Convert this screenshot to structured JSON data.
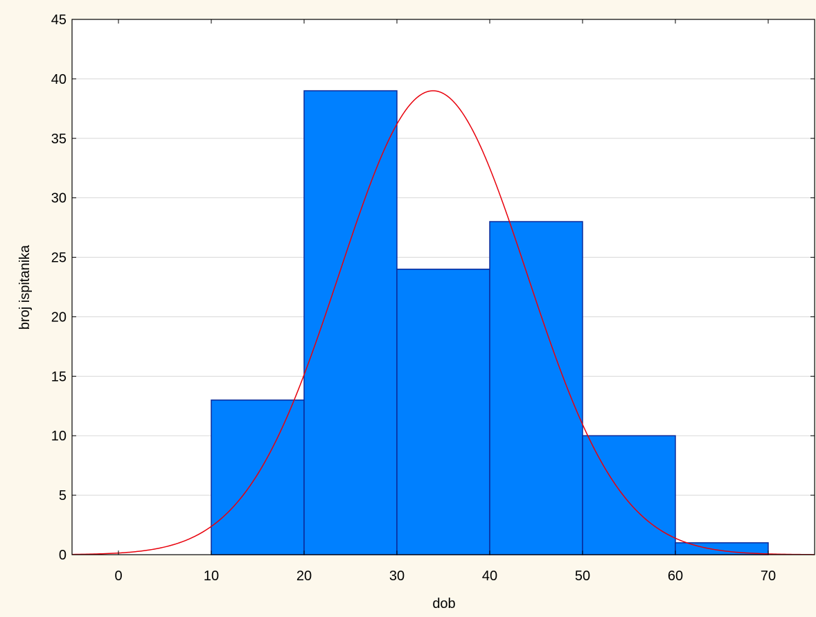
{
  "chart_data": {
    "type": "bar",
    "subtype": "histogram",
    "xlabel": "dob",
    "ylabel": "broj ispitanika",
    "xlim": [
      -5,
      75
    ],
    "ylim": [
      0,
      45
    ],
    "x_ticks": [
      0,
      10,
      20,
      30,
      40,
      50,
      60,
      70
    ],
    "y_ticks": [
      0,
      5,
      10,
      15,
      20,
      25,
      30,
      35,
      40,
      45
    ],
    "grid": "horizontal",
    "bins": [
      {
        "start": 10,
        "end": 20,
        "count": 13
      },
      {
        "start": 20,
        "end": 30,
        "count": 39
      },
      {
        "start": 30,
        "end": 40,
        "count": 24
      },
      {
        "start": 40,
        "end": 50,
        "count": 28
      },
      {
        "start": 50,
        "end": 60,
        "count": 10
      },
      {
        "start": 60,
        "end": 70,
        "count": 1
      }
    ],
    "normal_curve": {
      "mean": 33.9,
      "sd": 10.1,
      "peak": 39
    },
    "colors": {
      "bar_fill": "#0080ff",
      "bar_stroke": "#0a2a9a",
      "curve": "#e8000b",
      "grid": "#d8d8d8",
      "plot_bg": "#ffffff",
      "page_bg": "#fdf8ec"
    }
  }
}
